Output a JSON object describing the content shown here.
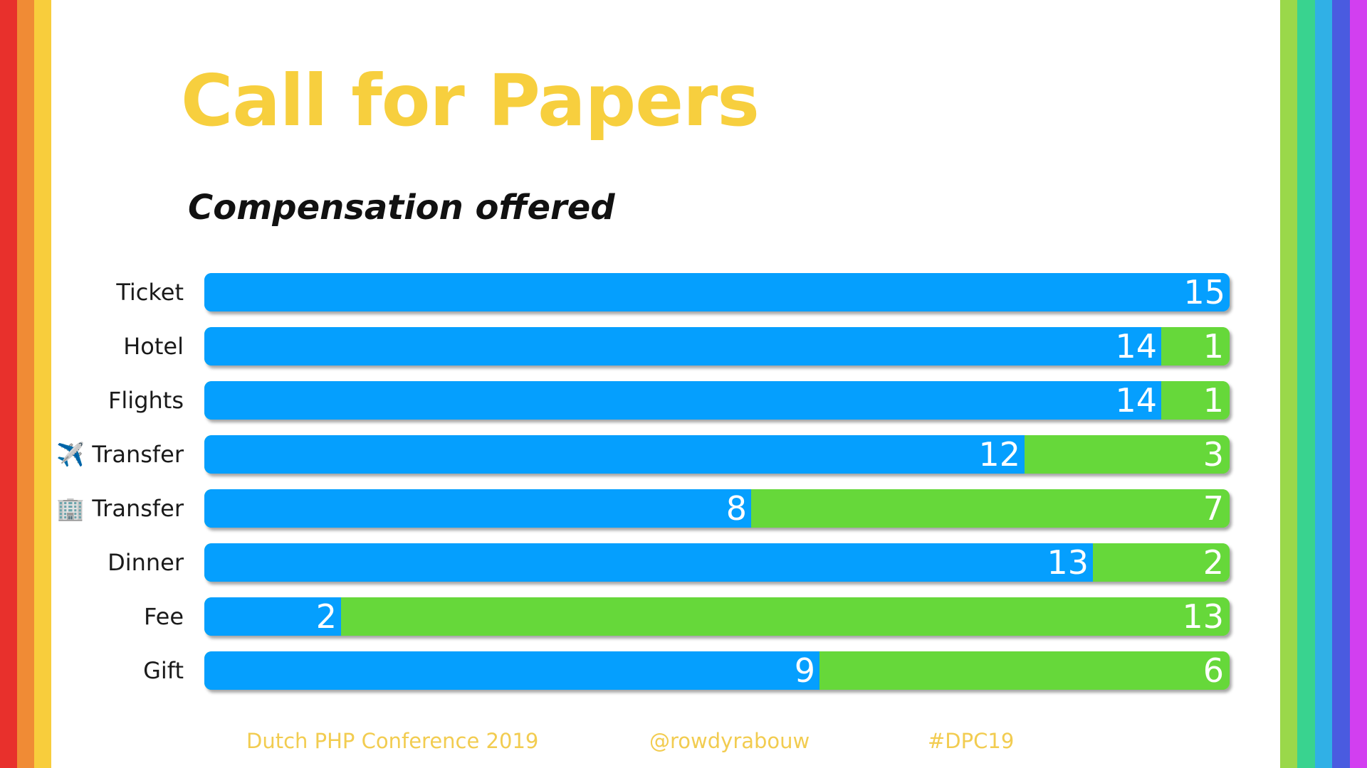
{
  "slide": {
    "title": "Call for Papers",
    "subtitle": "Compensation offered",
    "footer": {
      "conference": "Dutch PHP Conference 2019",
      "handle": "@rowdyrabouw",
      "hashtag": "#DPC19"
    }
  },
  "colors": {
    "title": "#f7cf3e",
    "footer": "#f2cc50",
    "series_a": "#059ffe",
    "series_b": "#66d83a",
    "stripes_left": [
      "#e8302c",
      "#f08b35",
      "#f8cd3c"
    ],
    "stripes_right": [
      "#9ad84a",
      "#39d38f",
      "#30b0e6",
      "#4a5be0",
      "#d23ff0"
    ]
  },
  "chart_data": {
    "type": "bar",
    "orientation": "horizontal",
    "stacked": true,
    "categories": [
      "Ticket",
      "Hotel",
      "Flights",
      "✈️ Transfer",
      "🏢 Transfer",
      "Dinner",
      "Fee",
      "Gift"
    ],
    "series": [
      {
        "values": [
          15,
          14,
          14,
          12,
          8,
          13,
          2,
          9
        ]
      },
      {
        "values": [
          0,
          1,
          1,
          3,
          7,
          2,
          13,
          6
        ]
      }
    ],
    "xlim": [
      0,
      15
    ],
    "grid": false,
    "data_labels": true
  }
}
